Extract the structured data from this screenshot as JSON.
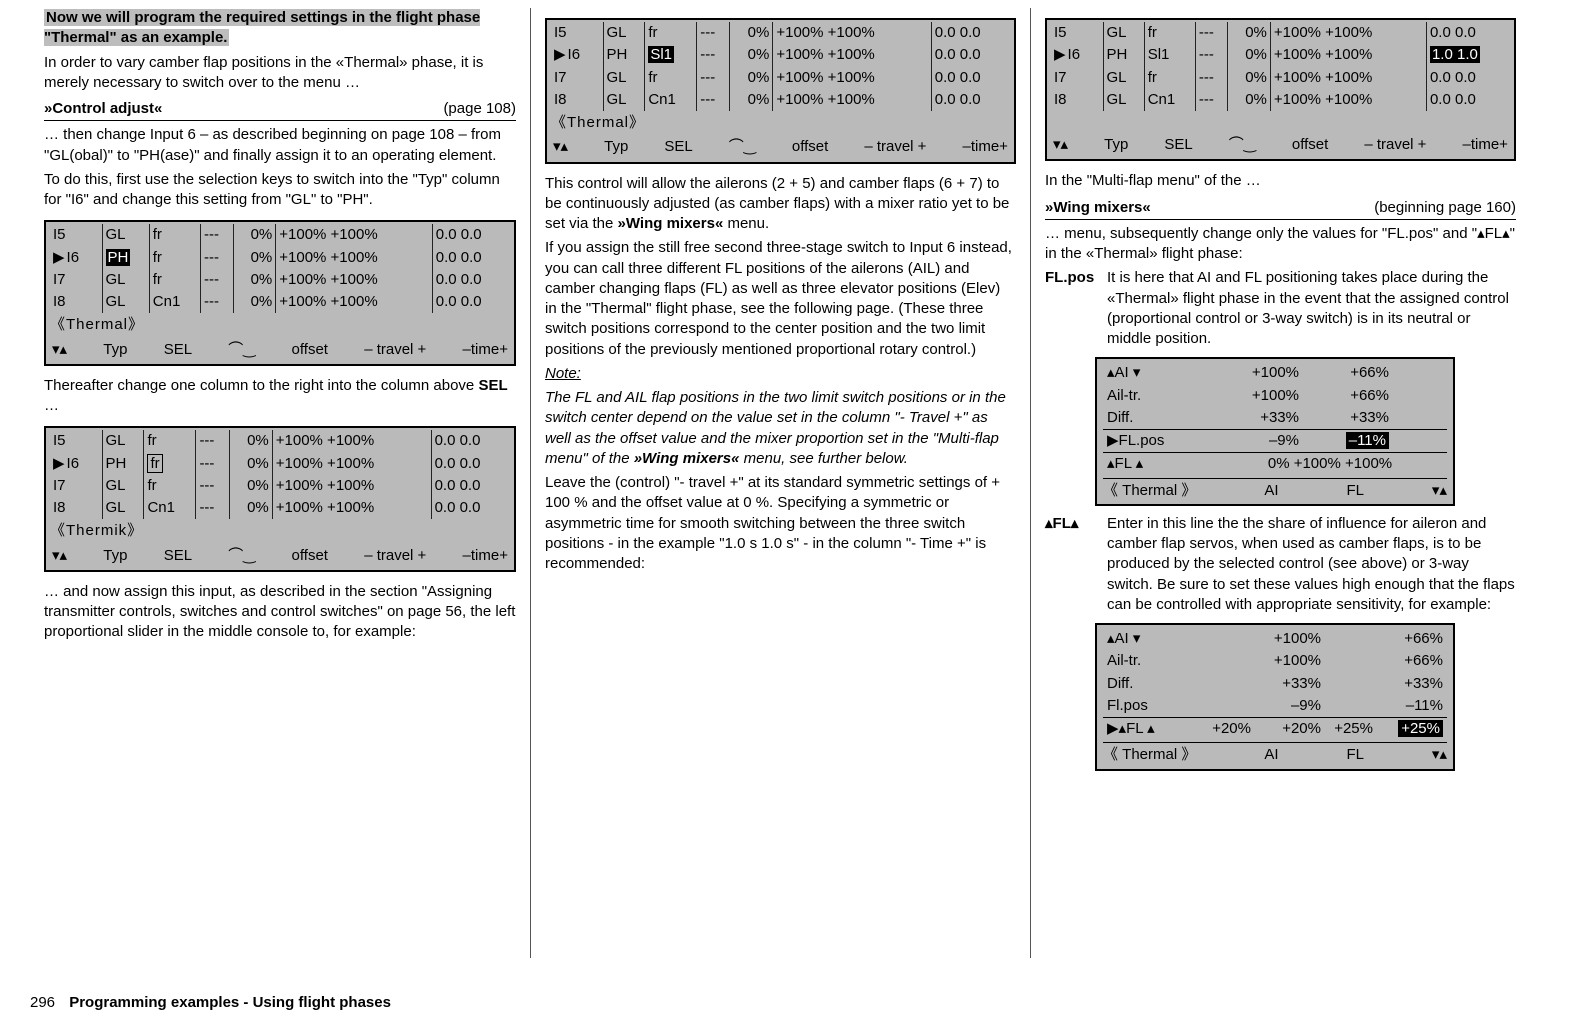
{
  "col1": {
    "intro_hl": "Now we will program the required settings in the flight phase \"Thermal\" as an example.",
    "p1": "In order to vary camber flap positions in the «Thermal» phase, it is merely necessary to switch over to the menu …",
    "head_t": "»Control adjust«",
    "head_r": "(page 108)",
    "p2": "… then change Input 6 – as described beginning on page 108 – from \"GL(obal)\" to \"PH(ase)\" and finally assign it to an operating element.",
    "p3": "To do this, first use the selection keys to switch into the \"Typ\" column for \"I6\" and change this setting from \"GL\" to \"PH\".",
    "p4": "Thereafter change one column to the right into the column above ",
    "p4b": "SEL",
    "p4c": " …",
    "p5": "… and now assign this input, as described in the section \"Assigning transmitter controls, switches and control switches\" on page 56, the left proportional slider in the middle console to, for example:"
  },
  "lcd_common": {
    "footer_l": "▾▴",
    "footer_typ": "Typ",
    "footer_sel": "SEL",
    "footer_sw": "⌒‿",
    "footer_off": "offset",
    "footer_trv": "– travel +",
    "footer_time": "–time+"
  },
  "lcdA": {
    "phase": "《Thermal》",
    "rows": [
      {
        "id": "I5",
        "typ": "GL",
        "sel": "fr",
        "sw": "---",
        "off": "0%",
        "trv": "+100% +100%",
        "time": "0.0 0.0",
        "cur": false,
        "hl_typ": false
      },
      {
        "id": "I6",
        "typ": "PH",
        "sel": "fr",
        "sw": "---",
        "off": "0%",
        "trv": "+100% +100%",
        "time": "0.0 0.0",
        "cur": true,
        "hl_typ": true
      },
      {
        "id": "I7",
        "typ": "GL",
        "sel": "fr",
        "sw": "---",
        "off": "0%",
        "trv": "+100% +100%",
        "time": "0.0 0.0",
        "cur": false,
        "hl_typ": false
      },
      {
        "id": "I8",
        "typ": "GL",
        "sel": "Cn1",
        "sw": "---",
        "off": "0%",
        "trv": "+100% +100%",
        "time": "0.0 0.0",
        "cur": false,
        "hl_typ": false
      }
    ]
  },
  "lcdB": {
    "phase": "《Thermik》",
    "rows": [
      {
        "id": "I5",
        "typ": "GL",
        "sel": "fr",
        "sw": "---",
        "off": "0%",
        "trv": "+100% +100%",
        "time": "0.0 0.0",
        "cur": false,
        "box_sel": false
      },
      {
        "id": "I6",
        "typ": "PH",
        "sel": "fr",
        "sw": "---",
        "off": "0%",
        "trv": "+100% +100%",
        "time": "0.0 0.0",
        "cur": true,
        "box_sel": true
      },
      {
        "id": "I7",
        "typ": "GL",
        "sel": "fr",
        "sw": "---",
        "off": "0%",
        "trv": "+100% +100%",
        "time": "0.0 0.0",
        "cur": false,
        "box_sel": false
      },
      {
        "id": "I8",
        "typ": "GL",
        "sel": "Cn1",
        "sw": "---",
        "off": "0%",
        "trv": "+100% +100%",
        "time": "0.0 0.0",
        "cur": false,
        "box_sel": false
      }
    ]
  },
  "lcdC": {
    "phase": "《Thermal》",
    "rows": [
      {
        "id": "I5",
        "typ": "GL",
        "sel": "fr",
        "sw": "---",
        "off": "0%",
        "trv": "+100% +100%",
        "time": "0.0 0.0",
        "cur": false,
        "hl_sel": false
      },
      {
        "id": "I6",
        "typ": "PH",
        "sel": "Sl1",
        "sw": "---",
        "off": "0%",
        "trv": "+100% +100%",
        "time": "0.0 0.0",
        "cur": true,
        "hl_sel": true
      },
      {
        "id": "I7",
        "typ": "GL",
        "sel": "fr",
        "sw": "---",
        "off": "0%",
        "trv": "+100% +100%",
        "time": "0.0 0.0",
        "cur": false,
        "hl_sel": false
      },
      {
        "id": "I8",
        "typ": "GL",
        "sel": "Cn1",
        "sw": "---",
        "off": "0%",
        "trv": "+100% +100%",
        "time": "0.0 0.0",
        "cur": false,
        "hl_sel": false
      }
    ]
  },
  "col2": {
    "p1a": "This control will allow the ailerons (2 + 5) and camber flaps (6 + 7) to be continuously adjusted (as camber flaps) with a mixer ratio yet to be set via the ",
    "p1b": "»Wing mixers«",
    "p1c": " menu.",
    "p2": "If you assign the still free second three-stage switch to Input 6 instead, you can call three different FL positions of the ailerons (AIL) and camber changing flaps (FL) as well as three elevator positions (Elev) in the \"Thermal\" flight phase, see the following page. (These three switch positions correspond to the center position and the two limit positions of the previously mentioned proportional rotary control.)",
    "note": "Note:",
    "p3a": "The FL and AIL flap positions in the two limit switch positions or in the switch center depend on the value set in the column \"- Travel +\" as well as the offset value and the mixer proportion set in the \"Multi-flap menu\" of the ",
    "p3b": "»Wing mixers«",
    "p3c": " menu, see further below.",
    "p4": "Leave the (control) \"- travel +\" at its standard symmetric settings of + 100 % and the offset value at 0 %. Specifying a symmetric or asymmetric time for smooth switching between the three switch positions - in the example \"1.0 s 1.0 s\" - in the column \"- Time +\" is recommended:"
  },
  "lcdD": {
    "phase": "",
    "rows": [
      {
        "id": "I5",
        "typ": "GL",
        "sel": "fr",
        "sw": "---",
        "off": "0%",
        "trv": "+100% +100%",
        "time": "0.0 0.0",
        "cur": false,
        "hl_time": false
      },
      {
        "id": "I6",
        "typ": "PH",
        "sel": "Sl1",
        "sw": "---",
        "off": "0%",
        "trv": "+100% +100%",
        "time": "1.0 1.0",
        "cur": true,
        "hl_time": true
      },
      {
        "id": "I7",
        "typ": "GL",
        "sel": "fr",
        "sw": "---",
        "off": "0%",
        "trv": "+100% +100%",
        "time": "0.0 0.0",
        "cur": false,
        "hl_time": false
      },
      {
        "id": "I8",
        "typ": "GL",
        "sel": "Cn1",
        "sw": "---",
        "off": "0%",
        "trv": "+100% +100%",
        "time": "0.0 0.0",
        "cur": false,
        "hl_time": false
      }
    ]
  },
  "col3": {
    "p1": "In the \"Multi-flap menu\" of the …",
    "head_t": "»Wing mixers«",
    "head_r": "(beginning page 160)",
    "p2": "… menu, subsequently change only the values for \"FL.pos\" and \"▴FL▴\" in the «Thermal» flight phase:",
    "def1_k": "FL.pos",
    "def1_v": "It is here that AI and FL positioning takes place during the «Thermal» flight phase in the event that the assigned control (proportional control or 3-way switch) is in its neutral or middle position.",
    "def2_k": "▴FL▴",
    "def2_v": "Enter in this line the the share of influence for aileron and camber flap servos, when used as camber flaps, is to be produced by the selected control (see above) or 3-way switch. Be sure to set these values high enough that the flaps can be controlled with appropriate sensitivity, for example:"
  },
  "miniA": {
    "rows": [
      {
        "k": "▴AI ▾",
        "a": "+100%",
        "b": "+66%",
        "cur": false
      },
      {
        "k": "Ail-tr.",
        "a": "+100%",
        "b": "+66%",
        "cur": false
      },
      {
        "k": "Diff.",
        "a": "+33%",
        "b": "+33%",
        "cur": false
      }
    ],
    "sel_row": {
      "k": "▶FL.pos",
      "a": "–9%",
      "b": "–11%",
      "hl_b": true
    },
    "last_row": {
      "k": "▴FL ▴",
      "val": "0% +100% +100%"
    },
    "foot_l": "《 Thermal 》",
    "foot_a": "AI",
    "foot_b": "FL",
    "foot_r": "▾▴"
  },
  "miniB": {
    "rows": [
      {
        "k": "▴AI ▾",
        "a": "+100%",
        "b": "+66%"
      },
      {
        "k": "Ail-tr.",
        "a": "+100%",
        "b": "+66%"
      },
      {
        "k": "Diff.",
        "a": "+33%",
        "b": "+33%"
      },
      {
        "k": "Fl.pos",
        "a": "–9%",
        "b": "–11%"
      }
    ],
    "sel_row": {
      "k": "▶▴FL ▴",
      "a": "+20%",
      "b": "+20%",
      "c": "+25%",
      "d": "+25%",
      "hl_d": true
    },
    "foot_l": "《 Thermal 》",
    "foot_a": "AI",
    "foot_b": "FL",
    "foot_r": "▾▴"
  },
  "footer": {
    "page": "296",
    "title": "Programming examples - Using flight phases"
  }
}
